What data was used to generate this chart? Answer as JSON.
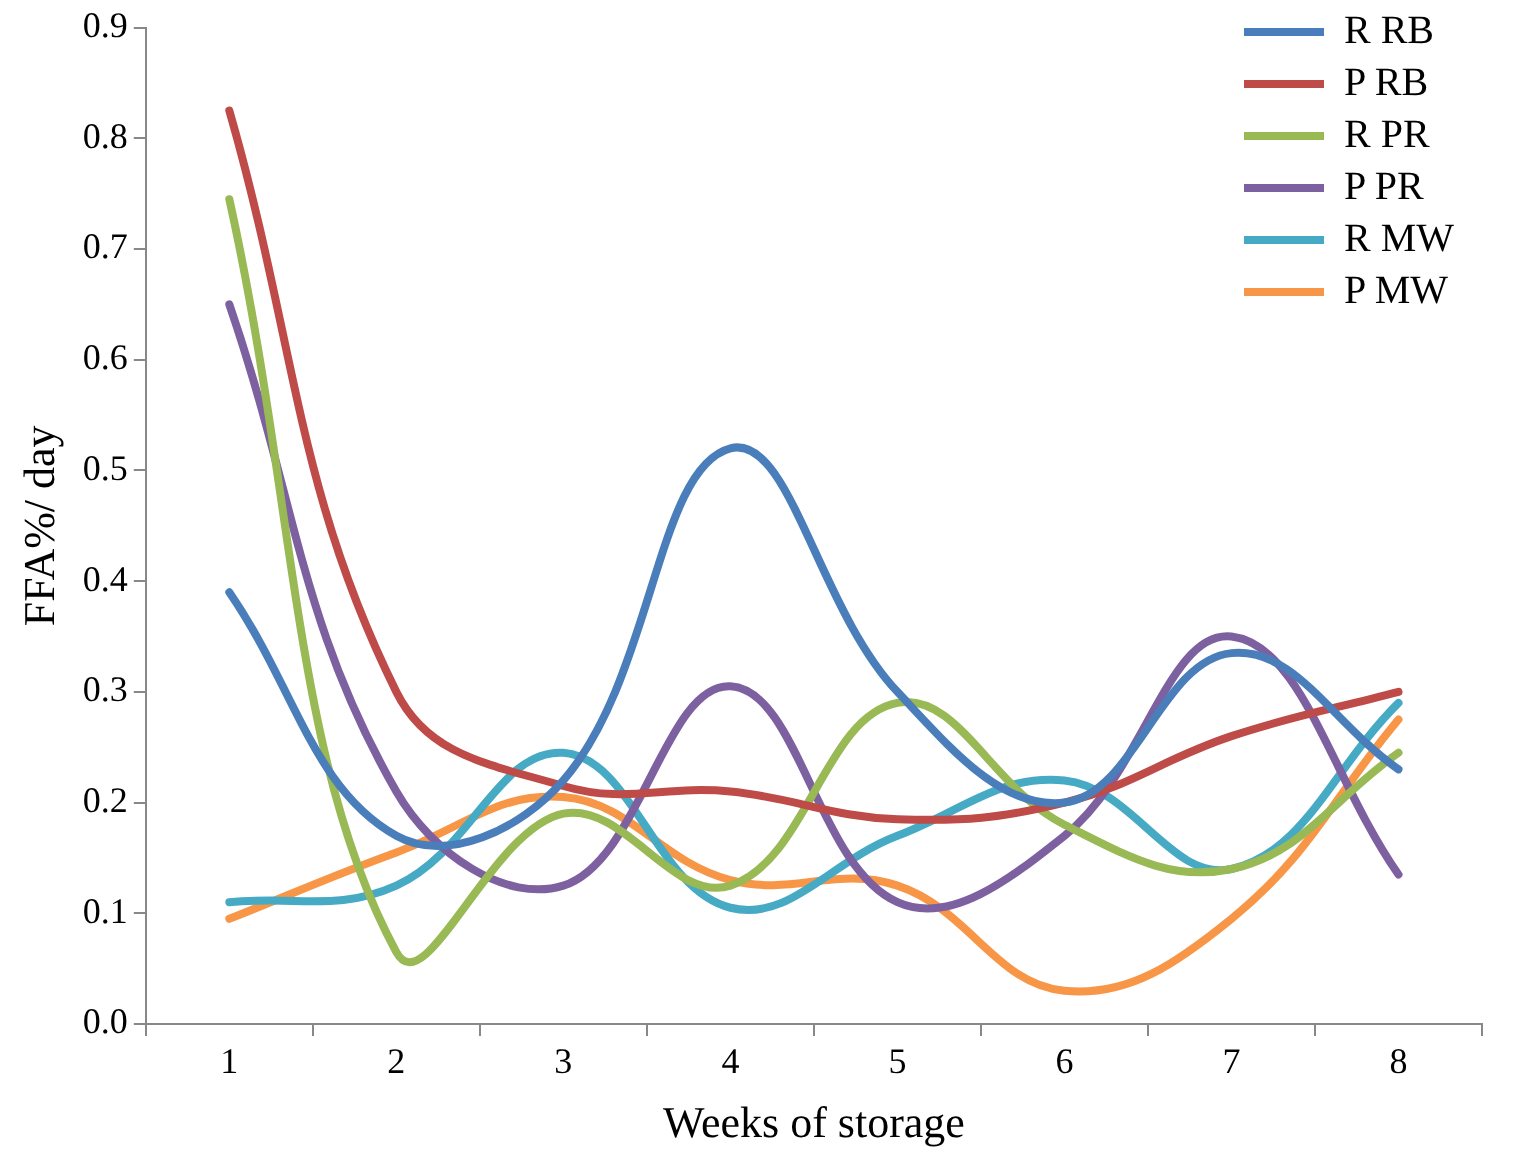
{
  "chart_data": {
    "type": "line",
    "xlabel": "Weeks of storage",
    "ylabel": "FFA%/ day",
    "categories": [
      "1",
      "2",
      "3",
      "4",
      "5",
      "6",
      "7",
      "8"
    ],
    "series": [
      {
        "name": "R RB",
        "color": "#4a7ebb",
        "values": [
          0.39,
          0.17,
          0.22,
          0.52,
          0.3,
          0.2,
          0.335,
          0.23
        ]
      },
      {
        "name": "P RB",
        "color": "#be4b48",
        "values": [
          0.825,
          0.3,
          0.215,
          0.21,
          0.185,
          0.2,
          0.26,
          0.3
        ]
      },
      {
        "name": "R PR",
        "color": "#98b954",
        "values": [
          0.745,
          0.065,
          0.19,
          0.125,
          0.29,
          0.18,
          0.14,
          0.245
        ]
      },
      {
        "name": "P PR",
        "color": "#7d60a0",
        "values": [
          0.65,
          0.21,
          0.125,
          0.305,
          0.11,
          0.17,
          0.35,
          0.135
        ]
      },
      {
        "name": "R MW",
        "color": "#46aac5",
        "values": [
          0.11,
          0.125,
          0.245,
          0.105,
          0.17,
          0.22,
          0.14,
          0.29
        ]
      },
      {
        "name": "P MW",
        "color": "#f79646",
        "values": [
          0.095,
          0.155,
          0.205,
          0.13,
          0.125,
          0.03,
          0.095,
          0.275
        ]
      }
    ],
    "ylim": [
      0,
      0.9
    ],
    "yticks": [
      {
        "value": 0,
        "label": "0.0"
      },
      0.1,
      0.2,
      0.3,
      0.4,
      0.5,
      0.6,
      0.7,
      0.8,
      0.9
    ],
    "grid": false,
    "legend": "top right",
    "marker": "none",
    "line_style": "solid"
  }
}
